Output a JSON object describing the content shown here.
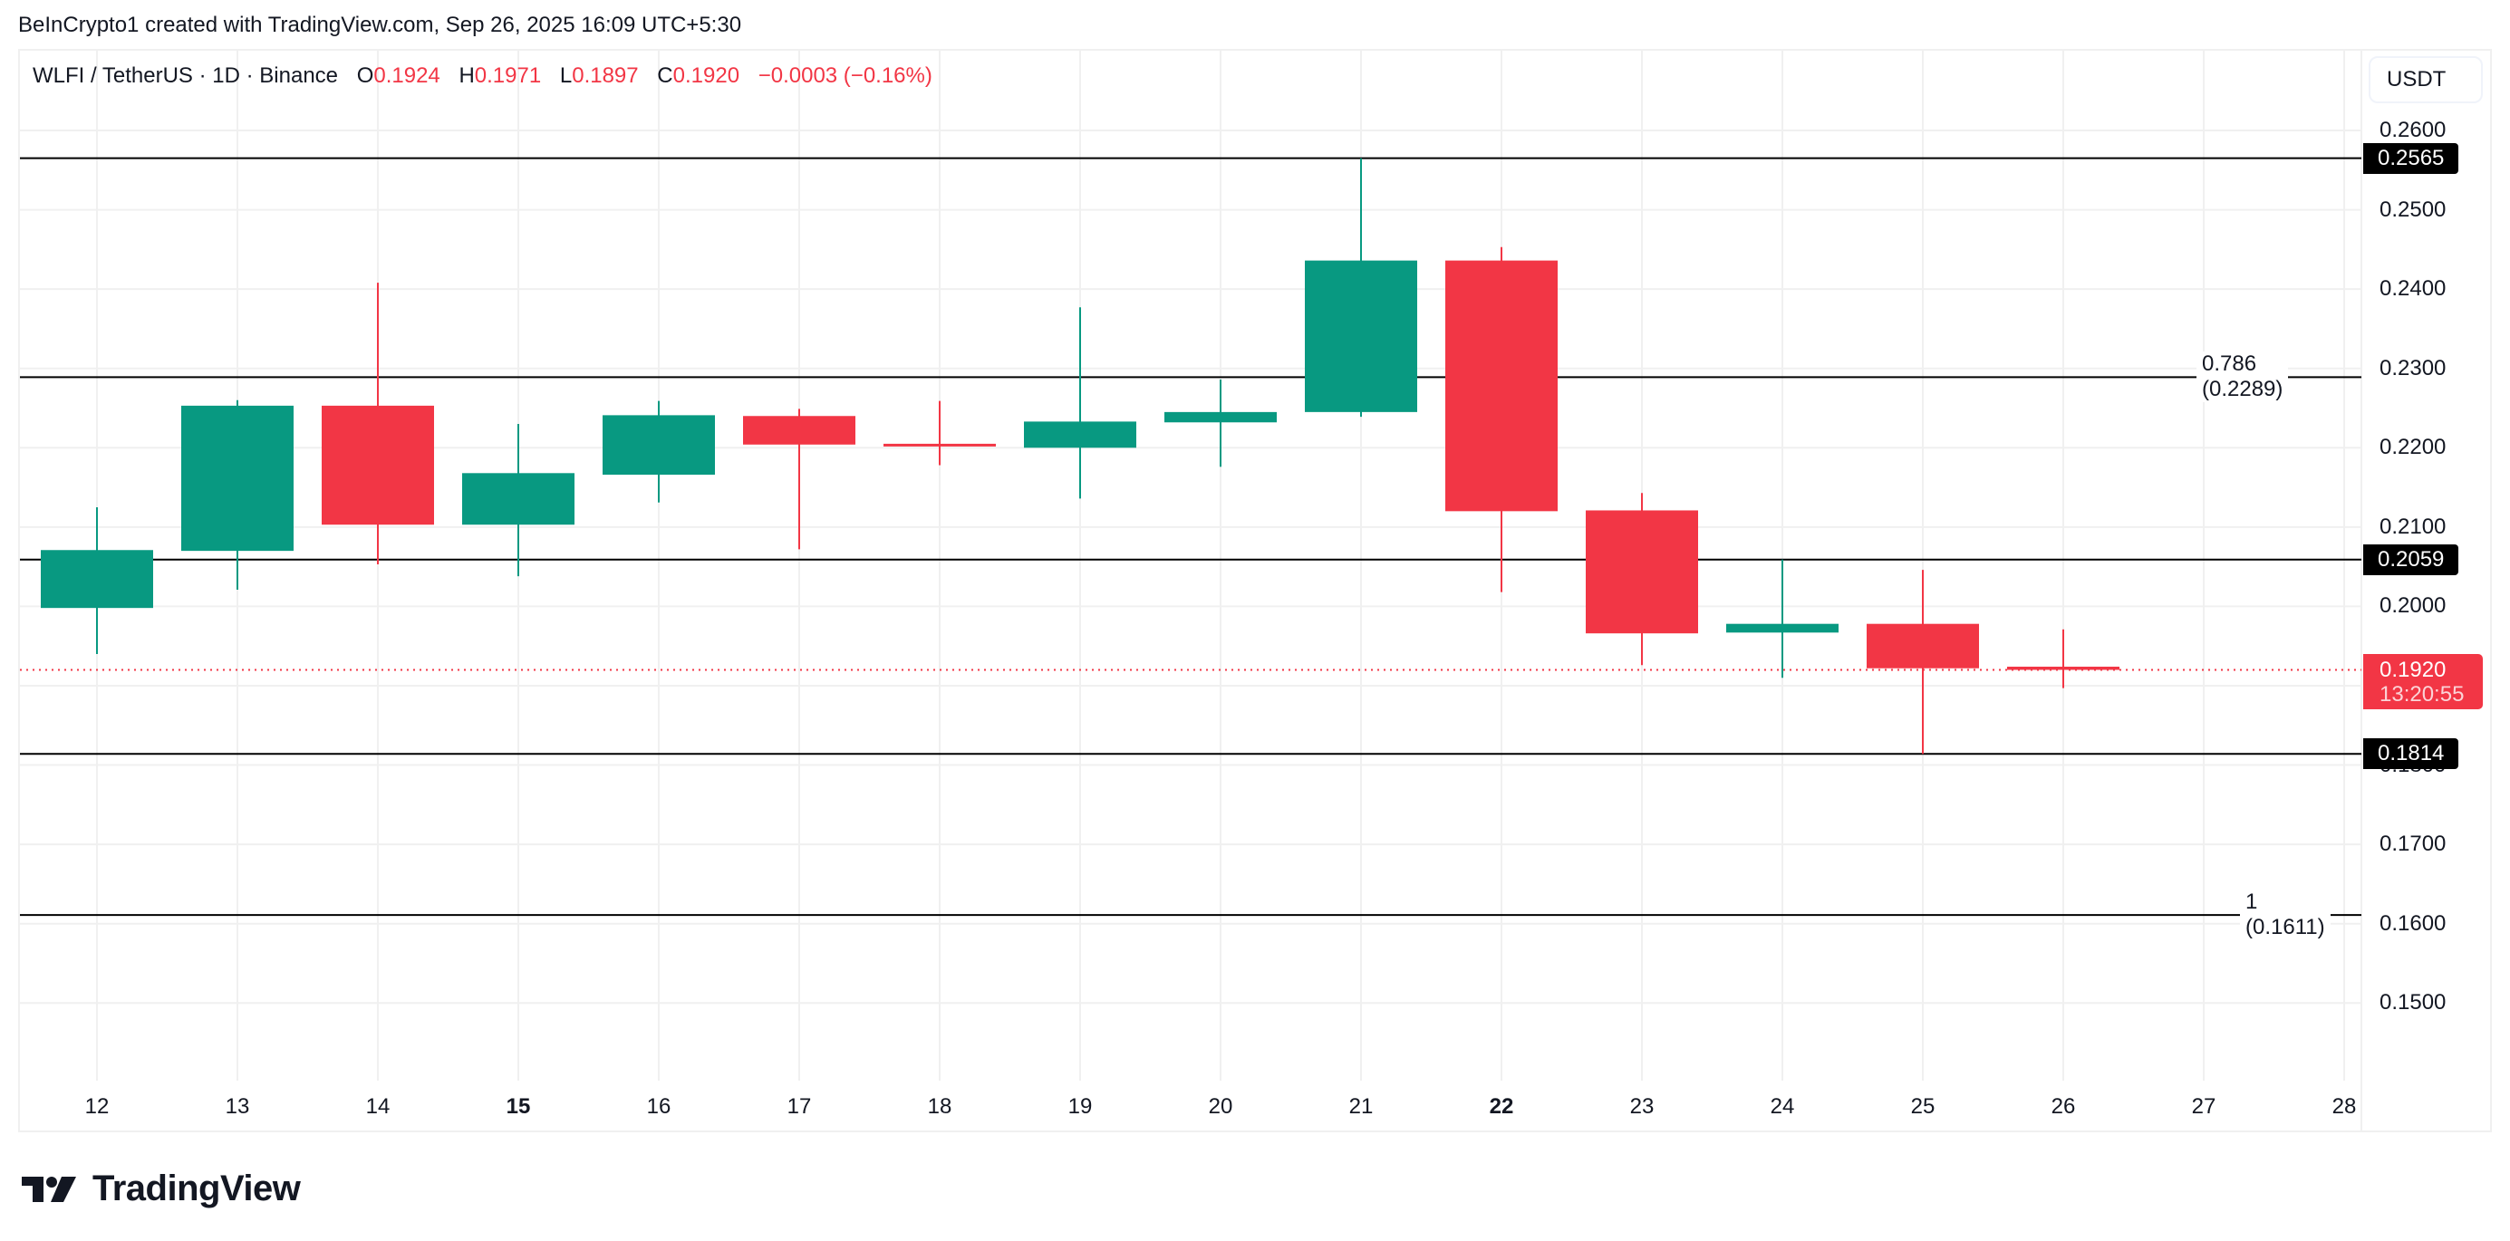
{
  "credit": "BeInCrypto1 created with TradingView.com, Sep 26, 2025 16:09 UTC+5:30",
  "legend": {
    "symbol": "WLFI / TetherUS · 1D · Binance",
    "o_label": "O",
    "o_value": "0.1924",
    "h_label": "H",
    "h_value": "0.1971",
    "l_label": "L",
    "l_value": "0.1897",
    "c_label": "C",
    "c_value": "0.1920",
    "change": "−0.0003 (−0.16%)"
  },
  "currency_button": "USDT",
  "live_price": {
    "value": "0.1920",
    "countdown": "13:20:55"
  },
  "logo": {
    "icon": "tradingview-logo-icon",
    "text": "TradingView"
  },
  "colors": {
    "up": "#089981",
    "down": "#F23645",
    "line": "#000000",
    "grid": "#f0f0f0",
    "text": "#131722"
  },
  "chart_data": {
    "type": "candlestick",
    "title": "WLFI / TetherUS · 1D · Binance",
    "xlabel": "",
    "ylabel": "USDT",
    "ylim": [
      0.142,
      0.27
    ],
    "y_ticks": [
      "0.2600",
      "0.2500",
      "0.2400",
      "0.2300",
      "0.2200",
      "0.2100",
      "0.2000",
      "0.1900",
      "0.1800",
      "0.1700",
      "0.1600",
      "0.1500"
    ],
    "y_tick_values": [
      0.26,
      0.25,
      0.24,
      0.23,
      0.22,
      0.21,
      0.2,
      0.19,
      0.18,
      0.17,
      0.16,
      0.15
    ],
    "x_ticks": [
      "12",
      "13",
      "14",
      "15",
      "16",
      "17",
      "18",
      "19",
      "20",
      "21",
      "22",
      "23",
      "24",
      "25",
      "26",
      "27",
      "28"
    ],
    "x_bold_ticks": [
      "15",
      "22"
    ],
    "grid": true,
    "candles": [
      {
        "day": "12",
        "open": 0.1998,
        "high": 0.2125,
        "low": 0.194,
        "close": 0.2071
      },
      {
        "day": "13",
        "open": 0.207,
        "high": 0.226,
        "low": 0.2021,
        "close": 0.2253
      },
      {
        "day": "14",
        "open": 0.2253,
        "high": 0.2408,
        "low": 0.2053,
        "close": 0.2103
      },
      {
        "day": "15",
        "open": 0.2103,
        "high": 0.223,
        "low": 0.2038,
        "close": 0.2168
      },
      {
        "day": "16",
        "open": 0.2166,
        "high": 0.2259,
        "low": 0.2131,
        "close": 0.2241
      },
      {
        "day": "17",
        "open": 0.224,
        "high": 0.2249,
        "low": 0.2072,
        "close": 0.2204
      },
      {
        "day": "18",
        "open": 0.2205,
        "high": 0.2259,
        "low": 0.2178,
        "close": 0.2203
      },
      {
        "day": "19",
        "open": 0.22,
        "high": 0.2377,
        "low": 0.2136,
        "close": 0.2233
      },
      {
        "day": "20",
        "open": 0.2232,
        "high": 0.2286,
        "low": 0.2176,
        "close": 0.2245
      },
      {
        "day": "21",
        "open": 0.2245,
        "high": 0.2565,
        "low": 0.2239,
        "close": 0.2436
      },
      {
        "day": "22",
        "open": 0.2436,
        "high": 0.2453,
        "low": 0.2018,
        "close": 0.212
      },
      {
        "day": "23",
        "open": 0.2121,
        "high": 0.2143,
        "low": 0.1926,
        "close": 0.1966
      },
      {
        "day": "24",
        "open": 0.1967,
        "high": 0.2059,
        "low": 0.191,
        "close": 0.1978
      },
      {
        "day": "25",
        "open": 0.1978,
        "high": 0.2046,
        "low": 0.1814,
        "close": 0.1922
      },
      {
        "day": "26",
        "open": 0.1924,
        "high": 0.1971,
        "low": 0.1897,
        "close": 0.192
      }
    ],
    "horizontal_levels": [
      {
        "price": 0.2565,
        "label": "0.2565",
        "type": "badge"
      },
      {
        "price": 0.2289,
        "label": "0.786 (0.2289)",
        "type": "fib"
      },
      {
        "price": 0.2059,
        "label": "0.2059",
        "type": "badge"
      },
      {
        "price": 0.1814,
        "label": "0.1814",
        "type": "badge"
      },
      {
        "price": 0.1611,
        "label": "1 (0.1611)",
        "type": "fib"
      }
    ],
    "last_price_line": {
      "price": 0.192,
      "style": "dotted",
      "color": "#F23645"
    },
    "annotations": [
      "0.786 (0.2289)",
      "1 (0.1611)"
    ]
  }
}
